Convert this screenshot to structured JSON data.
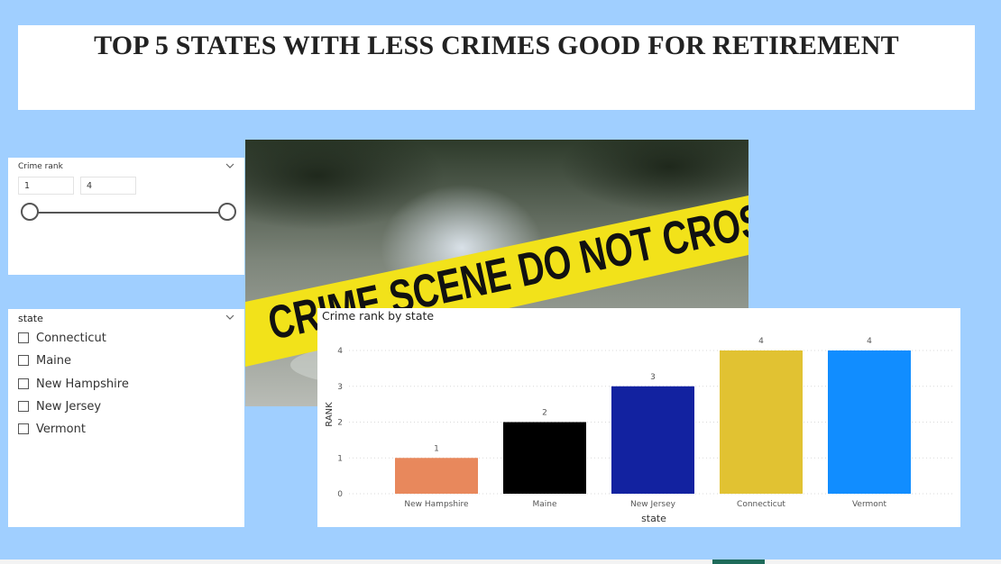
{
  "page": {
    "title": "TOP 5 STATES WITH LESS CRIMES GOOD FOR RETIREMENT"
  },
  "colors": {
    "background": "#a0cfff",
    "tape": "#f2e21a",
    "active_tab": "#1e6b5a"
  },
  "range_slicer": {
    "title": "Crime rank",
    "min_value": "1",
    "max_value": "4",
    "icon": "chevron-down-icon"
  },
  "state_slicer": {
    "title": "state",
    "icon": "chevron-down-icon",
    "items": [
      "Connecticut",
      "Maine",
      "New Hampshire",
      "New Jersey",
      "Vermont"
    ]
  },
  "photo": {
    "tape_text": "CRIME SCENE DO NOT CROS"
  },
  "chart_data": {
    "type": "bar",
    "title": "Crime rank by state",
    "xlabel": "state",
    "ylabel": "RANK",
    "categories": [
      "New Hampshire",
      "Maine",
      "New Jersey",
      "Connecticut",
      "Vermont"
    ],
    "values": [
      1,
      2,
      3,
      4,
      4
    ],
    "colors": [
      "#e8885c",
      "#000000",
      "#1222a0",
      "#e1c232",
      "#118dff"
    ],
    "ylim": [
      0,
      4
    ],
    "yticks": [
      0,
      1,
      2,
      3,
      4
    ],
    "grid": true,
    "data_labels": true
  }
}
